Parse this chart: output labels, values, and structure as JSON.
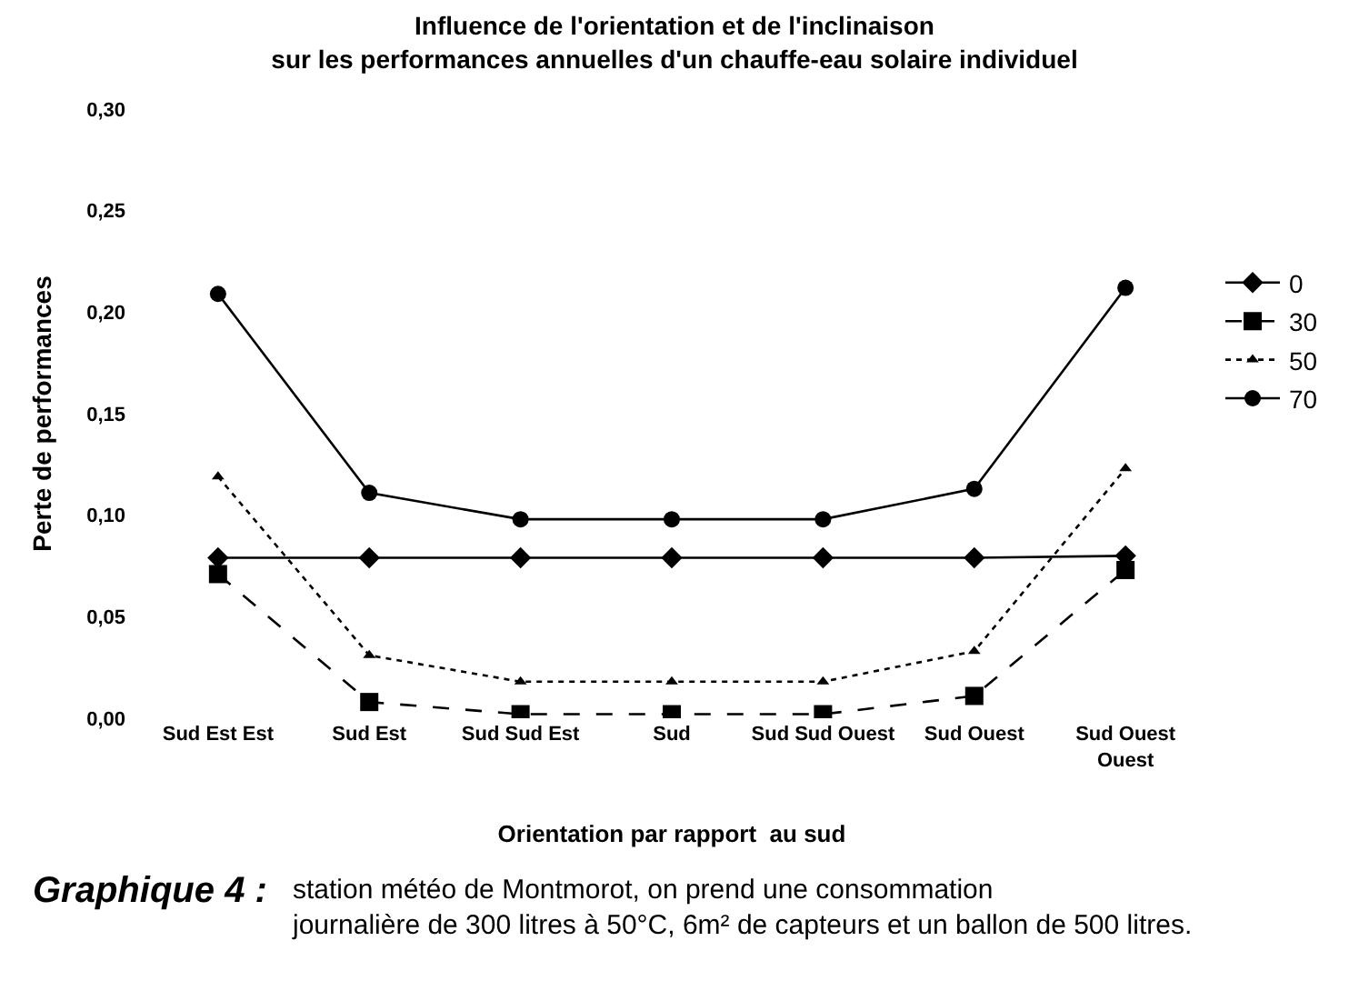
{
  "chart_data": {
    "type": "line",
    "title": "Influence de l'orientation et de l'inclinaison\nsur les performances annuelles d'un chauffe-eau solaire individuel",
    "xlabel": "Orientation par rapport  au sud",
    "ylabel": "Perte de performances",
    "categories": [
      "Sud Est Est",
      "Sud Est",
      "Sud Sud Est",
      "Sud",
      "Sud Sud Ouest",
      "Sud Ouest",
      "Sud Ouest\nOuest"
    ],
    "series": [
      {
        "name": "0",
        "color": "#000000",
        "marker": "diamond",
        "line_style": "solid",
        "values": [
          0.079,
          0.079,
          0.079,
          0.079,
          0.079,
          0.079,
          0.08
        ]
      },
      {
        "name": "30",
        "color": "#000000",
        "marker": "square",
        "line_style": "dashed",
        "values": [
          0.071,
          0.008,
          0.002,
          0.002,
          0.002,
          0.011,
          0.073
        ]
      },
      {
        "name": "50",
        "color": "#000000",
        "marker": "triangle",
        "line_style": "dotted",
        "values": [
          0.119,
          0.031,
          0.018,
          0.018,
          0.018,
          0.033,
          0.123
        ]
      },
      {
        "name": "70",
        "color": "#000000",
        "marker": "circle",
        "line_style": "solid",
        "values": [
          0.209,
          0.111,
          0.098,
          0.098,
          0.098,
          0.113,
          0.212
        ]
      }
    ],
    "ylim": [
      0,
      0.3
    ],
    "yticks": [
      {
        "value": 0,
        "label": "0,00"
      },
      {
        "value": 0.05,
        "label": "0,05"
      },
      {
        "value": 0.1,
        "label": "0,10"
      },
      {
        "value": 0.15,
        "label": "0,15"
      },
      {
        "value": 0.2,
        "label": "0,20"
      },
      {
        "value": 0.25,
        "label": "0,25"
      },
      {
        "value": 0.3,
        "label": "0,30"
      }
    ],
    "legend": "right",
    "annotations": [
      "Graphique 4 :",
      "station météo de Montmorot, on prend une consommation\njournalière de 300 litres à 50°C, 6m² de capteurs et un ballon de 500 litres."
    ]
  }
}
